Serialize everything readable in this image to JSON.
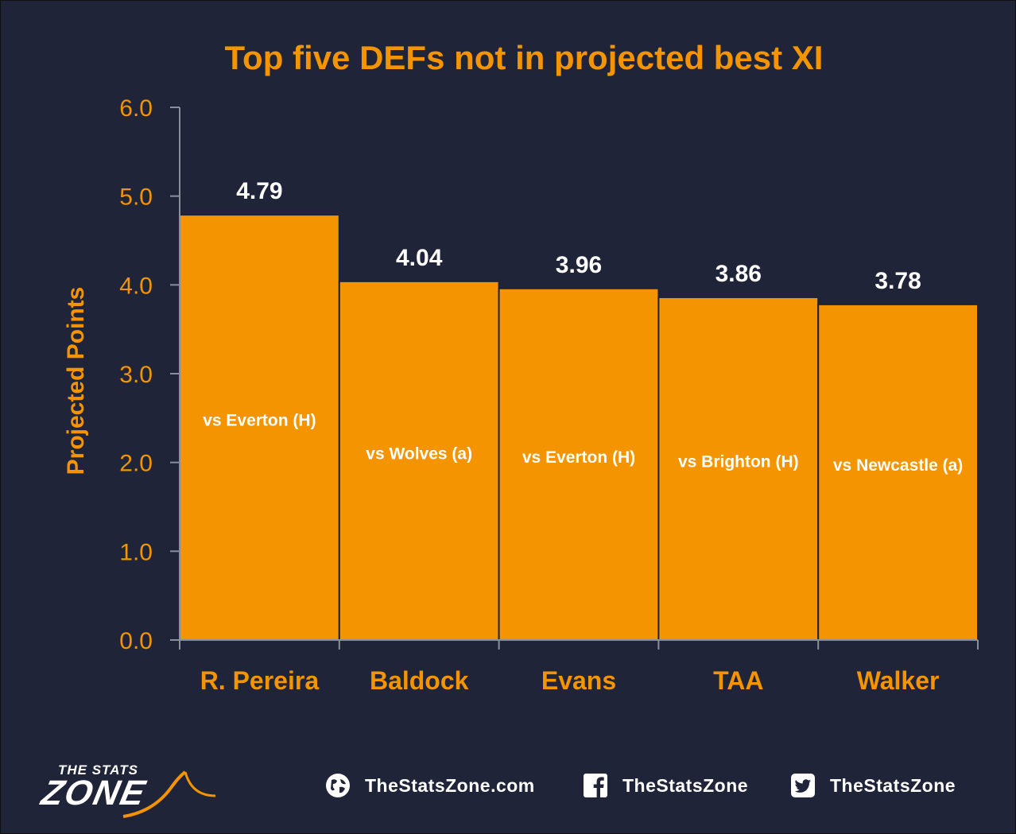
{
  "chart_data": {
    "type": "bar",
    "title": "Top five DEFs not in projected best XI",
    "ylabel": "Projected Points",
    "xlabel": "",
    "ylim": [
      0,
      6
    ],
    "yticks": [
      "0.0",
      "1.0",
      "2.0",
      "3.0",
      "4.0",
      "5.0",
      "6.0"
    ],
    "categories": [
      "R. Pereira",
      "Baldock",
      "Evans",
      "TAA",
      "Walker"
    ],
    "values": [
      4.79,
      4.04,
      3.96,
      3.86,
      3.78
    ],
    "value_labels": [
      "4.79",
      "4.04",
      "3.96",
      "3.86",
      "3.78"
    ],
    "fixtures": [
      "vs Everton (H)",
      "vs Wolves (a)",
      "vs Everton (H)",
      "vs Brighton (H)",
      "vs Newcastle (a)"
    ],
    "grid": false,
    "legend": "none",
    "bar_color": "#f39400",
    "text_color": "#f39400",
    "background": "#1f2438"
  },
  "footer": {
    "logo_top": "THE STATS",
    "logo_main": "ZONE",
    "website": "TheStatsZone.com",
    "facebook": "TheStatsZone",
    "twitter": "TheStatsZone"
  }
}
